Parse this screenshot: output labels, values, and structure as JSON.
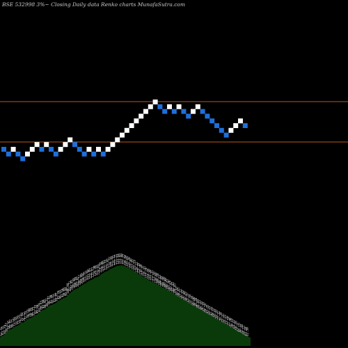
{
  "title": "BSE 532998  3%~   Closing Daily data  Renko  charts MunafaSutra.com",
  "colors": {
    "background": "#000000",
    "up_brick": "#ffffff",
    "down_brick": "#1e6fd9",
    "reference_line": "#b85a1a",
    "volume": "#0a3a0a",
    "volume_label": "#dddddd"
  },
  "chart_data": {
    "type": "renko",
    "reference_lines": [
      67.4,
      57.2
    ],
    "bricks": [
      {
        "dir": "down",
        "level": 0
      },
      {
        "dir": "down",
        "level": -1
      },
      {
        "dir": "up",
        "level": 0
      },
      {
        "dir": "down",
        "level": -1
      },
      {
        "dir": "down",
        "level": -2
      },
      {
        "dir": "up",
        "level": -1
      },
      {
        "dir": "up",
        "level": 0
      },
      {
        "dir": "up",
        "level": 1
      },
      {
        "dir": "down",
        "level": 0
      },
      {
        "dir": "up",
        "level": 1
      },
      {
        "dir": "down",
        "level": 0
      },
      {
        "dir": "down",
        "level": -1
      },
      {
        "dir": "up",
        "level": 0
      },
      {
        "dir": "up",
        "level": 1
      },
      {
        "dir": "up",
        "level": 2
      },
      {
        "dir": "down",
        "level": 1
      },
      {
        "dir": "down",
        "level": 0
      },
      {
        "dir": "down",
        "level": -1
      },
      {
        "dir": "up",
        "level": 0
      },
      {
        "dir": "down",
        "level": -1
      },
      {
        "dir": "up",
        "level": 0
      },
      {
        "dir": "down",
        "level": -1
      },
      {
        "dir": "up",
        "level": 0
      },
      {
        "dir": "up",
        "level": 1
      },
      {
        "dir": "up",
        "level": 2
      },
      {
        "dir": "up",
        "level": 3
      },
      {
        "dir": "up",
        "level": 4
      },
      {
        "dir": "up",
        "level": 5
      },
      {
        "dir": "up",
        "level": 6
      },
      {
        "dir": "up",
        "level": 7
      },
      {
        "dir": "up",
        "level": 8
      },
      {
        "dir": "up",
        "level": 9
      },
      {
        "dir": "up",
        "level": 10
      },
      {
        "dir": "down",
        "level": 9
      },
      {
        "dir": "down",
        "level": 8
      },
      {
        "dir": "up",
        "level": 9
      },
      {
        "dir": "down",
        "level": 8
      },
      {
        "dir": "up",
        "level": 9
      },
      {
        "dir": "down",
        "level": 8
      },
      {
        "dir": "down",
        "level": 7
      },
      {
        "dir": "up",
        "level": 8
      },
      {
        "dir": "up",
        "level": 9
      },
      {
        "dir": "down",
        "level": 8
      },
      {
        "dir": "down",
        "level": 7
      },
      {
        "dir": "down",
        "level": 6
      },
      {
        "dir": "down",
        "level": 5
      },
      {
        "dir": "down",
        "level": 4
      },
      {
        "dir": "down",
        "level": 3
      },
      {
        "dir": "up",
        "level": 4
      },
      {
        "dir": "up",
        "level": 5
      },
      {
        "dir": "up",
        "level": 6
      },
      {
        "dir": "down",
        "level": 5
      }
    ],
    "volume_labels": [
      "62.75",
      "63.75",
      "64.79",
      "66.67",
      "68.95",
      "69.82",
      "70.11",
      "71.49",
      "72.65",
      "73.29",
      "74.13",
      "75.98",
      "76.12",
      "77.55",
      "78.73",
      "79.90",
      "80.48",
      "81.13",
      "82.77",
      "83.08",
      "84.59",
      "86.63",
      "87.68",
      "88.02",
      "89.31",
      "90.97",
      "91.96",
      "92.35",
      "93.31",
      "94.07",
      "95.79",
      "96.33",
      "97.58",
      "98.66",
      "99.04",
      "100.90",
      "102.73",
      "104.05",
      "105.65",
      "106.50",
      "107.07",
      "108.52",
      "109.60",
      "110.81",
      "111.71",
      "112.91",
      "113.96",
      "114.67",
      "115.61",
      "116.90",
      "117.24",
      "118.03",
      "119.78",
      "120.80",
      "121.91",
      "122.55",
      "123.61",
      "124.77",
      "125.40",
      "126.41",
      "127.21",
      "127.63",
      "127.83",
      "127.88",
      "127.25",
      "126.54",
      "125.65",
      "124.70",
      "123.46",
      "122.72",
      "121.73",
      "120.21",
      "119.18",
      "118.20",
      "117.17",
      "116.41",
      "115.24",
      "114.16",
      "113.28",
      "112.75",
      "111.56",
      "110.69",
      "109.78",
      "108.63",
      "107.49",
      "106.99",
      "105.88",
      "104.81",
      "103.76",
      "102.87",
      "101.93",
      "100.85",
      "99.67",
      "98.65",
      "97.51",
      "96.43",
      "95.40",
      "94.41",
      "93.27",
      "92.34",
      "91.16",
      "90.06",
      "89.30",
      "88.04",
      "87.23",
      "86.32",
      "85.39",
      "84.14",
      "83.25",
      "82.21",
      "81.31",
      "80.37",
      "79.33",
      "78.25",
      "77.31",
      "76.34",
      "75.22",
      "74.21",
      "73.32",
      "72.34",
      "71.30",
      "70.23",
      "69.47",
      "68.28",
      "67.11",
      "66.12",
      "65.40",
      "64.11",
      "63.18",
      "62.59"
    ]
  }
}
